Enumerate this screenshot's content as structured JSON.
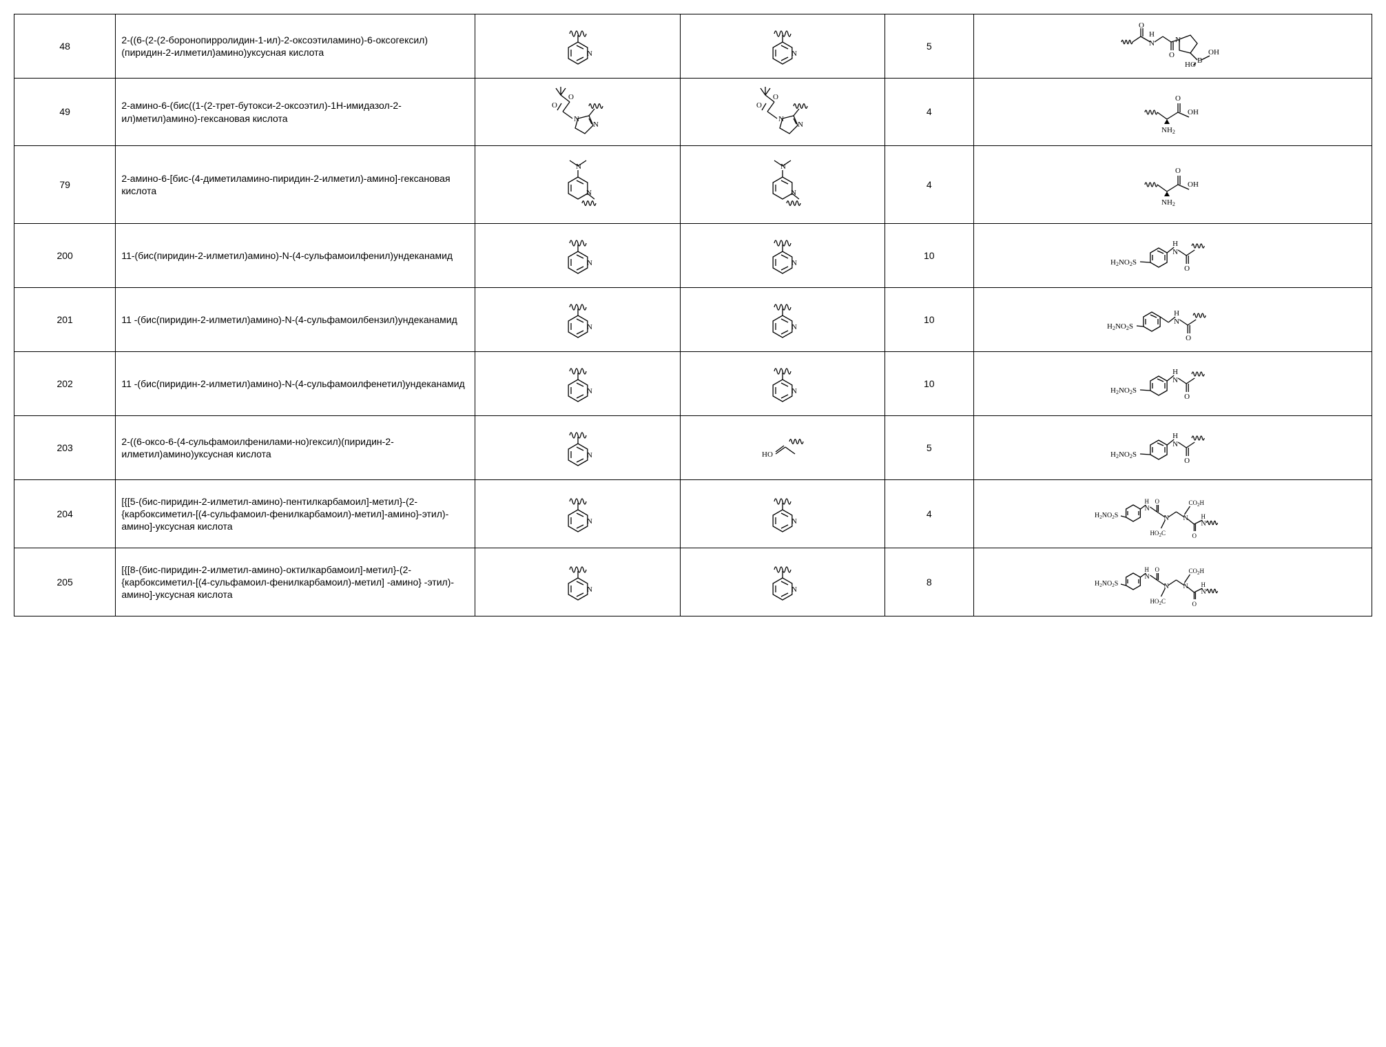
{
  "table": {
    "columns": [
      "id",
      "name",
      "struct1",
      "struct2",
      "n",
      "struct3"
    ],
    "col_widths_pct": [
      7,
      27,
      15,
      15,
      6,
      30
    ],
    "border_color": "#000000",
    "background_color": "#ffffff",
    "font_family": "Arial",
    "font_size_pt": 10,
    "rows": [
      {
        "id": "48",
        "name": "2-((6-(2-(2-боронопирролидин-1-ил)-2-оксоэтиламино)-6-оксогексил)(пиридин-2-илметил)амино)уксусная кислота",
        "struct1": "pyridyl",
        "struct2": "pyridyl",
        "n": "5",
        "struct3": "boronoproline"
      },
      {
        "id": "49",
        "name": "2-амино-6-(бис((1-(2-трет-бутокси-2-оксоэтил)-1H-имидазол-2-ил)метил)амино)-гексановая кислота",
        "struct1": "imidazole_tbu",
        "struct2": "imidazole_tbu",
        "n": "4",
        "struct3": "aminoacid"
      },
      {
        "id": "79",
        "name": "2-амино-6-[бис-(4-диметиламино-пиридин-2-илметил)-амино]-гексановая кислота",
        "struct1": "dmap",
        "struct2": "dmap",
        "n": "4",
        "struct3": "aminoacid"
      },
      {
        "id": "200",
        "name": "11-(бис(пиридин-2-илметил)амино)-N-(4-сульфамоилфенил)ундеканамид",
        "struct1": "pyridyl",
        "struct2": "pyridyl",
        "n": "10",
        "struct3": "sulfonamide_phenyl"
      },
      {
        "id": "201",
        "name": "11 -(бис(пиридин-2-илметил)амино)-N-(4-сульфамоилбензил)ундеканамид",
        "struct1": "pyridyl",
        "struct2": "pyridyl",
        "n": "10",
        "struct3": "sulfonamide_benzyl"
      },
      {
        "id": "202",
        "name": "11 -(бис(пиридин-2-илметил)амино)-N-(4-сульфамоилфенетил)ундеканамид",
        "struct1": "pyridyl",
        "struct2": "pyridyl",
        "n": "10",
        "struct3": "sulfonamide_phenyl"
      },
      {
        "id": "203",
        "name": "2-((6-оксо-6-(4-сульфамоилфенилами-но)гексил)(пиридин-2-илметил)амино)уксусная кислота",
        "struct1": "pyridyl",
        "struct2": "hydroxy",
        "n": "5",
        "struct3": "sulfonamide_phenyl"
      },
      {
        "id": "204",
        "name": "[{[5-(бис-пиридин-2-илметил-амино)-пентилкарбамоил]-метил}-(2-{карбоксиметил-[(4-сульфамоил-фенилкарбамоил)-метил]-амино}-этил)-амино]-уксусная кислота",
        "struct1": "pyridyl",
        "struct2": "pyridyl",
        "n": "4",
        "struct3": "sulfonamide_chelate"
      },
      {
        "id": "205",
        "name": "[{[8-(бис-пиридин-2-илметил-амино)-октилкарбамоил]-метил}-(2-{карбоксиметил-[(4-сульфамоил-фенилкарбамоил)-метил] -амино} -этил)-амино]-уксусная кислота",
        "struct1": "pyridyl",
        "struct2": "pyridyl",
        "n": "8",
        "struct3": "sulfonamide_chelate"
      }
    ],
    "structure_svgs": {
      "stroke_color": "#000000",
      "stroke_width": 1.2,
      "label_font": "Times New Roman"
    }
  }
}
